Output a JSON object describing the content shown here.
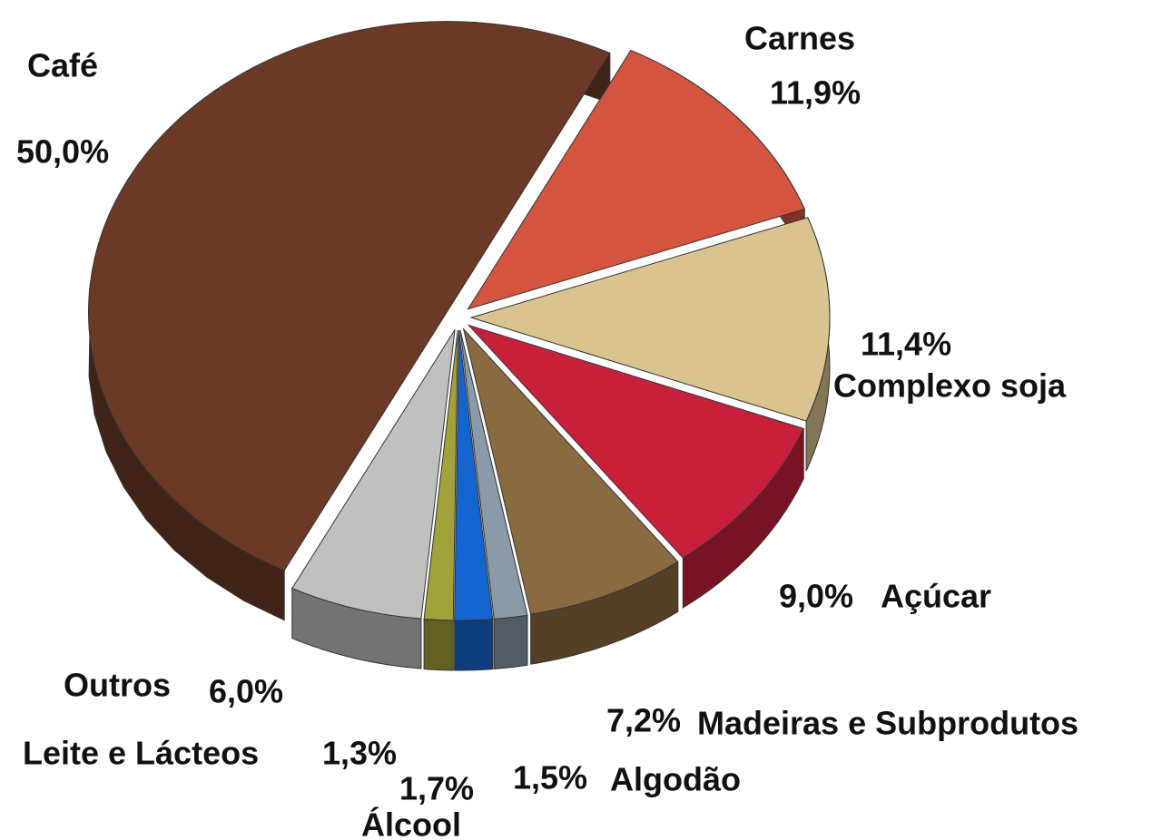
{
  "chart_data": {
    "type": "pie",
    "categories": [
      "Carnes",
      "Complexo soja",
      "Açúcar",
      "Madeiras e Subprodutos",
      "Algodão",
      "Álcool",
      "Leite e Lácteos",
      "Outros",
      "Café"
    ],
    "values": [
      11.9,
      11.4,
      9.0,
      7.2,
      1.5,
      1.7,
      1.3,
      6.0,
      50.0
    ],
    "value_labels": [
      "11,9%",
      "11,4%",
      "9,0%",
      "7,2%",
      "1,5%",
      "1,7%",
      "1,3%",
      "6,0%",
      "50,0%"
    ],
    "colors": [
      "#d4553f",
      "#d9c48f",
      "#c8203a",
      "#8a6a40",
      "#8a9aa8",
      "#1565d0",
      "#a2a23a",
      "#c0c0c0",
      "#6b3a26"
    ]
  }
}
